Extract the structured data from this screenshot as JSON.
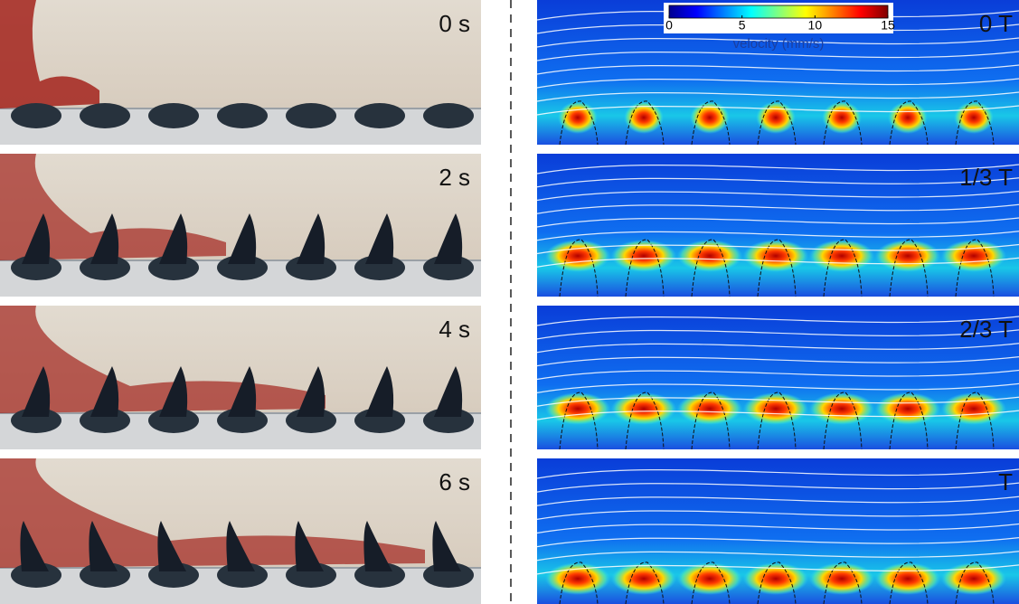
{
  "photo_panels": [
    {
      "label": "0 s"
    },
    {
      "label": "2 s"
    },
    {
      "label": "4 s"
    },
    {
      "label": "6 s"
    }
  ],
  "simulation_panels": [
    {
      "label": "0 T"
    },
    {
      "label": "1/3 T"
    },
    {
      "label": "2/3 T"
    },
    {
      "label": "T"
    }
  ],
  "colorbar": {
    "title": "velocity (mm/s)",
    "lim": [
      0,
      15
    ],
    "ticks": [
      0,
      5,
      10,
      15
    ]
  }
}
